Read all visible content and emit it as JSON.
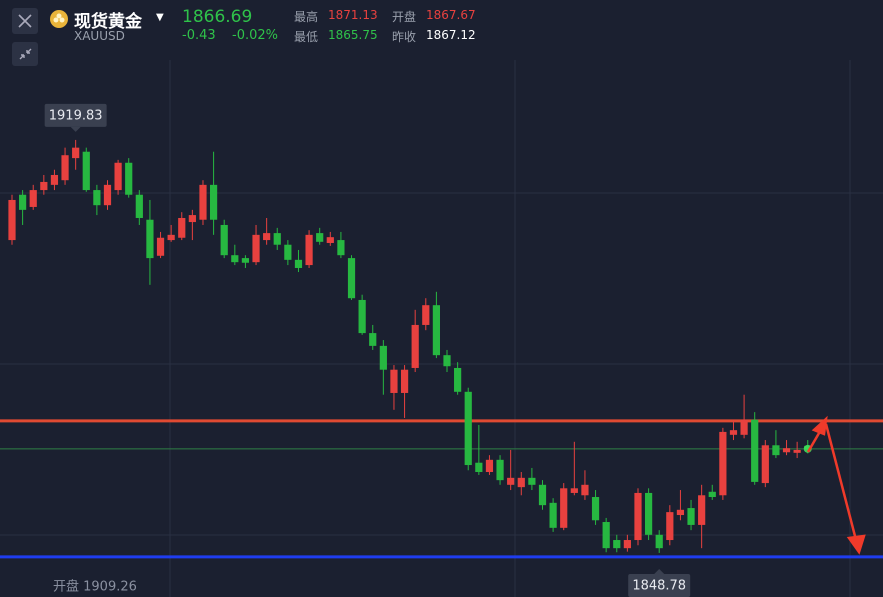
{
  "header": {
    "name": "现货黄金",
    "symbol": "XAUUSD",
    "price": "1866.69",
    "change": "-0.43",
    "change_pct": "-0.02%",
    "stats": [
      {
        "label": "最高",
        "value": "1871.13",
        "tone": "up"
      },
      {
        "label": "开盘",
        "value": "1867.67",
        "tone": "up"
      },
      {
        "label": "最低",
        "value": "1865.75",
        "tone": "down"
      },
      {
        "label": "昨收",
        "value": "1867.12",
        "tone": "flat"
      }
    ]
  },
  "chart_data": {
    "type": "candlestick",
    "ylim": [
      1841.2,
      1943.9
    ],
    "up_color": "#e8413f",
    "down_color": "#27b841",
    "footer_label": "开盘 1909.26",
    "annotations": [
      {
        "text": "1919.83",
        "index": 6,
        "value": 1919.83,
        "side": "top"
      },
      {
        "text": "1848.78",
        "index": 61,
        "value": 1848.78,
        "side": "bottom"
      }
    ],
    "hlines": [
      {
        "value": 1871.5,
        "color": "#e04a32"
      },
      {
        "value": 1848.1,
        "color": "#1f3df0"
      },
      {
        "value": 1866.69,
        "color": "#2f7f45"
      }
    ],
    "candles": [
      [
        1902.6,
        1910.4,
        1901.8,
        1909.5
      ],
      [
        1910.4,
        1911.2,
        1905.2,
        1907.8
      ],
      [
        1908.3,
        1912.1,
        1907.8,
        1911.2
      ],
      [
        1911.2,
        1913.8,
        1910.4,
        1912.6
      ],
      [
        1912.1,
        1914.7,
        1911.2,
        1913.8
      ],
      [
        1912.9,
        1918.5,
        1912.1,
        1917.2
      ],
      [
        1916.7,
        1919.83,
        1914.7,
        1918.5
      ],
      [
        1917.8,
        1918.5,
        1910.9,
        1911.2
      ],
      [
        1911.2,
        1912.1,
        1906.9,
        1908.6
      ],
      [
        1908.6,
        1912.9,
        1907.8,
        1912.1
      ],
      [
        1911.2,
        1916.4,
        1910.4,
        1915.9
      ],
      [
        1915.9,
        1916.7,
        1909.9,
        1910.4
      ],
      [
        1910.4,
        1911.2,
        1905.2,
        1906.4
      ],
      [
        1906.1,
        1909.5,
        1894.9,
        1899.5
      ],
      [
        1899.9,
        1904.0,
        1899.5,
        1903.0
      ],
      [
        1902.6,
        1905.2,
        1902.3,
        1903.5
      ],
      [
        1903.0,
        1907.4,
        1902.6,
        1906.4
      ],
      [
        1905.7,
        1907.8,
        1902.6,
        1906.9
      ],
      [
        1906.1,
        1912.9,
        1905.2,
        1912.1
      ],
      [
        1912.1,
        1917.8,
        1903.5,
        1906.1
      ],
      [
        1905.2,
        1906.1,
        1899.5,
        1900.0
      ],
      [
        1900.0,
        1901.8,
        1898.3,
        1898.8
      ],
      [
        1899.5,
        1900.0,
        1897.8,
        1898.7
      ],
      [
        1898.8,
        1905.2,
        1898.3,
        1903.5
      ],
      [
        1902.6,
        1906.4,
        1901.8,
        1903.8
      ],
      [
        1903.8,
        1904.7,
        1900.9,
        1901.8
      ],
      [
        1901.8,
        1902.6,
        1898.3,
        1899.2
      ],
      [
        1899.2,
        1900.9,
        1897.1,
        1897.8
      ],
      [
        1898.3,
        1904.3,
        1897.8,
        1903.5
      ],
      [
        1903.8,
        1904.7,
        1901.8,
        1902.3
      ],
      [
        1902.1,
        1904.0,
        1901.6,
        1903.1
      ],
      [
        1902.6,
        1904.0,
        1899.5,
        1900.0
      ],
      [
        1899.5,
        1900.0,
        1892.3,
        1892.6
      ],
      [
        1892.3,
        1893.2,
        1886.3,
        1886.6
      ],
      [
        1886.6,
        1888.0,
        1883.7,
        1884.4
      ],
      [
        1884.4,
        1885.4,
        1876.0,
        1880.3
      ],
      [
        1876.3,
        1881.1,
        1873.4,
        1880.3
      ],
      [
        1876.3,
        1881.1,
        1872.0,
        1880.3
      ],
      [
        1880.6,
        1890.6,
        1879.9,
        1888.0
      ],
      [
        1888.0,
        1892.6,
        1887.1,
        1891.4
      ],
      [
        1891.4,
        1893.7,
        1882.3,
        1882.8
      ],
      [
        1882.8,
        1883.7,
        1879.9,
        1880.9
      ],
      [
        1880.6,
        1881.6,
        1876.0,
        1876.5
      ],
      [
        1876.5,
        1877.2,
        1863.0,
        1863.9
      ],
      [
        1864.3,
        1870.8,
        1862.2,
        1862.7
      ],
      [
        1862.7,
        1865.6,
        1862.2,
        1864.8
      ],
      [
        1864.8,
        1865.6,
        1860.5,
        1861.3
      ],
      [
        1860.5,
        1866.5,
        1859.6,
        1861.7
      ],
      [
        1860.1,
        1862.7,
        1858.7,
        1861.7
      ],
      [
        1861.7,
        1863.4,
        1859.6,
        1860.5
      ],
      [
        1860.5,
        1861.3,
        1856.2,
        1857.0
      ],
      [
        1857.4,
        1858.2,
        1852.4,
        1853.1
      ],
      [
        1853.1,
        1860.8,
        1852.7,
        1859.9
      ],
      [
        1859.1,
        1867.9,
        1858.7,
        1859.9
      ],
      [
        1858.7,
        1863.0,
        1857.9,
        1860.5
      ],
      [
        1858.4,
        1859.6,
        1853.6,
        1854.4
      ],
      [
        1854.1,
        1854.8,
        1848.9,
        1849.6
      ],
      [
        1851.0,
        1851.9,
        1848.9,
        1849.6
      ],
      [
        1849.6,
        1851.9,
        1849.0,
        1851.0
      ],
      [
        1851.0,
        1859.9,
        1850.1,
        1859.1
      ],
      [
        1859.1,
        1859.9,
        1851.0,
        1851.9
      ],
      [
        1851.9,
        1852.7,
        1848.78,
        1849.6
      ],
      [
        1851.0,
        1857.0,
        1850.1,
        1855.8
      ],
      [
        1855.3,
        1859.6,
        1854.4,
        1856.2
      ],
      [
        1856.5,
        1857.9,
        1852.7,
        1853.6
      ],
      [
        1853.6,
        1860.5,
        1849.6,
        1858.7
      ],
      [
        1859.3,
        1860.5,
        1857.9,
        1858.4
      ],
      [
        1858.7,
        1870.3,
        1857.9,
        1869.6
      ],
      [
        1869.1,
        1871.7,
        1868.2,
        1869.9
      ],
      [
        1869.1,
        1876.0,
        1868.5,
        1871.7
      ],
      [
        1871.7,
        1873.0,
        1860.5,
        1861.0
      ],
      [
        1860.8,
        1868.2,
        1860.1,
        1867.3
      ],
      [
        1867.3,
        1869.9,
        1865.1,
        1865.6
      ],
      [
        1866.1,
        1868.2,
        1865.6,
        1866.8
      ],
      [
        1866.0,
        1867.9,
        1865.1,
        1866.5
      ],
      [
        1867.2,
        1868.2,
        1865.9,
        1866.69
      ]
    ]
  }
}
